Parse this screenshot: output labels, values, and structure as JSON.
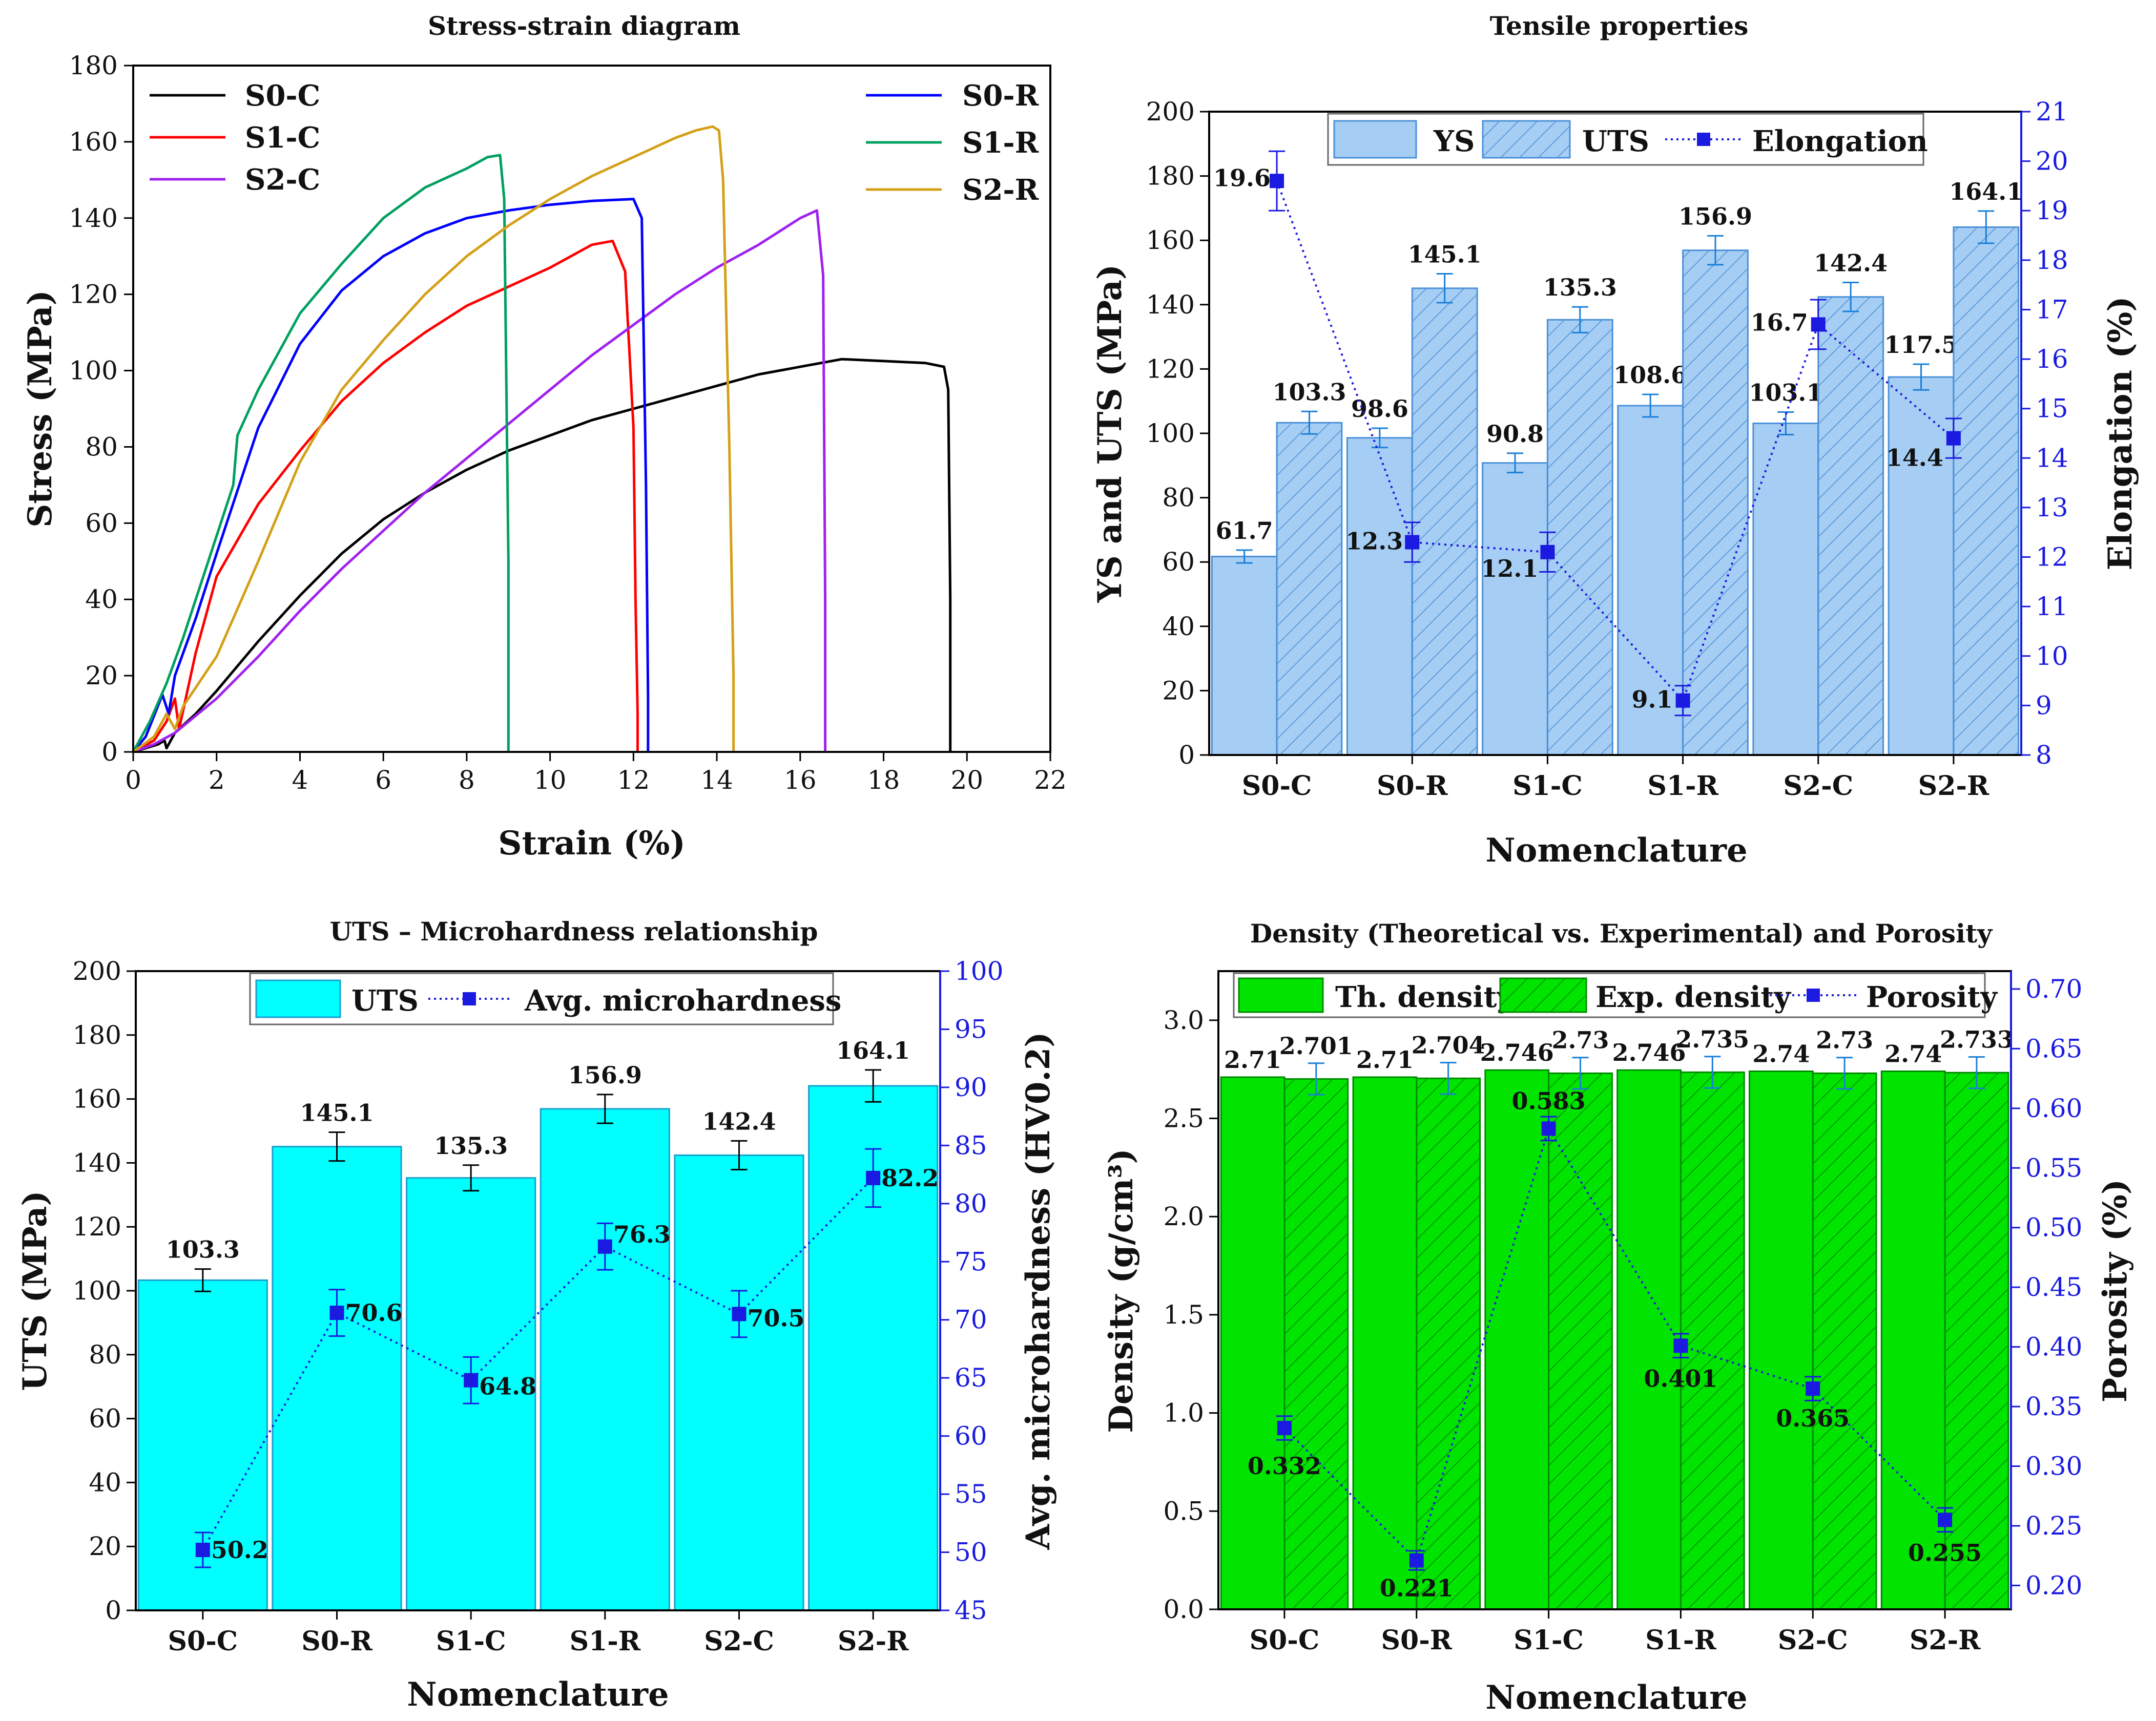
{
  "chart_data": [
    {
      "id": "c1",
      "type": "line",
      "title": "Stress-strain diagram",
      "xlabel": "Strain (%)",
      "ylabel": "Stress (MPa)",
      "xlim": [
        0,
        22
      ],
      "ylim": [
        0,
        180
      ],
      "xticks": [
        "0",
        "2",
        "4",
        "6",
        "8",
        "10",
        "12",
        "14",
        "16",
        "18",
        "20",
        "22"
      ],
      "yticks": [
        "0",
        "20",
        "40",
        "60",
        "80",
        "100",
        "120",
        "140",
        "160",
        "180"
      ],
      "legend_position": "top",
      "series": [
        {
          "name": "S0-C",
          "color": "#000000",
          "x": [
            0,
            0.3,
            0.6,
            0.75,
            0.8,
            1.0,
            1.5,
            2,
            3,
            4,
            5,
            6,
            7,
            8,
            9,
            10,
            11,
            12,
            13,
            14,
            15,
            16,
            17,
            18,
            19,
            19.45,
            19.55,
            19.6,
            19.6
          ],
          "y": [
            0,
            1,
            2,
            3,
            1,
            5,
            10,
            16,
            29,
            41,
            52,
            61,
            68,
            74,
            79,
            83,
            87,
            90,
            93,
            96,
            99,
            101,
            103,
            102.5,
            102,
            101,
            95,
            40,
            0
          ]
        },
        {
          "name": "S1-C",
          "color": "#ff0000",
          "x": [
            0,
            0.5,
            0.8,
            1.0,
            1.1,
            1.5,
            2,
            3,
            4,
            5,
            6,
            7,
            8,
            9,
            10,
            11,
            11.5,
            11.8,
            12.0,
            12.05,
            12.1,
            12.1
          ],
          "y": [
            0,
            3,
            8,
            14,
            6,
            26,
            46,
            65,
            79,
            92,
            102,
            110,
            117,
            122,
            127,
            133,
            134,
            126,
            85,
            40,
            10,
            0
          ]
        },
        {
          "name": "S2-C",
          "color": "#a020f0",
          "x": [
            0,
            0.5,
            1,
            2,
            3,
            4,
            5,
            6,
            7,
            8,
            9,
            10,
            11,
            12,
            13,
            14,
            15,
            16,
            16.4,
            16.55,
            16.6,
            16.6
          ],
          "y": [
            0,
            2,
            5,
            14,
            25,
            37,
            48,
            58,
            68,
            77,
            86,
            95,
            104,
            112,
            120,
            127,
            133,
            140,
            142,
            125,
            40,
            0
          ]
        },
        {
          "name": "S0-R",
          "color": "#0000ff",
          "x": [
            0,
            0.3,
            0.7,
            0.85,
            1.0,
            1.5,
            2,
            3,
            4,
            5,
            6,
            7,
            8,
            9,
            10,
            11,
            12,
            12.2,
            12.3,
            12.35,
            12.35
          ],
          "y": [
            0,
            4,
            15,
            10,
            20,
            35,
            52,
            85,
            107,
            121,
            130,
            136,
            140,
            142,
            143.5,
            144.5,
            145,
            140,
            70,
            15,
            0
          ]
        },
        {
          "name": "S1-R",
          "color": "#00a060",
          "x": [
            0,
            0.4,
            0.8,
            1.2,
            1.8,
            2.4,
            2.5,
            3,
            4,
            5,
            6,
            7,
            8,
            8.5,
            8.8,
            8.9,
            9.0,
            9.0
          ],
          "y": [
            0,
            8,
            18,
            30,
            50,
            70,
            83,
            95,
            115,
            128,
            140,
            148,
            153,
            156,
            156.5,
            145,
            50,
            0
          ]
        },
        {
          "name": "S2-R",
          "color": "#d4a017",
          "x": [
            0,
            0.5,
            0.8,
            1.0,
            1.2,
            2,
            3,
            4,
            5,
            6,
            7,
            8,
            9,
            10,
            11,
            12,
            13,
            13.5,
            13.9,
            14.05,
            14.15,
            14.3,
            14.4,
            14.4
          ],
          "y": [
            0,
            4,
            10,
            6,
            12,
            25,
            50,
            76,
            95,
            108,
            120,
            130,
            138,
            145,
            151,
            156,
            161,
            163,
            164,
            163,
            150,
            80,
            20,
            0
          ]
        }
      ]
    },
    {
      "id": "c2",
      "type": "bar",
      "title": "Tensile properties",
      "xlabel": "Nomenclature",
      "ylabel": "YS and UTS (MPa)",
      "y2label": "Elongation (%)",
      "categories": [
        "S0-C",
        "S0-R",
        "S1-C",
        "S1-R",
        "S2-C",
        "S2-R"
      ],
      "ylim": [
        0,
        200
      ],
      "y2lim": [
        8,
        21
      ],
      "yticks": [
        "0",
        "20",
        "40",
        "60",
        "80",
        "100",
        "120",
        "140",
        "160",
        "180",
        "200"
      ],
      "y2ticks": [
        "8",
        "9",
        "10",
        "11",
        "12",
        "13",
        "14",
        "15",
        "16",
        "17",
        "18",
        "19",
        "20",
        "21"
      ],
      "legend_position": "top",
      "legend": [
        "YS",
        "UTS",
        "Elongation"
      ],
      "series": [
        {
          "name": "YS",
          "values": [
            61.7,
            98.6,
            90.8,
            108.6,
            103.1,
            117.5
          ],
          "labels": [
            "61.7",
            "98.6",
            "90.8",
            "108.6",
            "103.1",
            "117.5"
          ],
          "errors": [
            2,
            3,
            3,
            3.5,
            3.5,
            4
          ]
        },
        {
          "name": "UTS",
          "values": [
            103.3,
            145.1,
            135.3,
            156.9,
            142.4,
            164.1
          ],
          "labels": [
            "103.3",
            "145.1",
            "135.3",
            "156.9",
            "142.4",
            "164.1"
          ],
          "errors": [
            3.5,
            4.5,
            4,
            4.5,
            4.5,
            5
          ]
        },
        {
          "name": "Elongation",
          "axis": "y2",
          "values": [
            19.6,
            12.3,
            12.1,
            9.1,
            16.7,
            14.4
          ],
          "labels": [
            "19.6",
            "12.3",
            "12.1",
            "9.1",
            "16.7",
            "14.4"
          ],
          "errors": [
            0.6,
            0.4,
            0.4,
            0.3,
            0.5,
            0.4
          ]
        }
      ]
    },
    {
      "id": "c3",
      "type": "bar",
      "title": "UTS – Microhardness relationship",
      "xlabel": "Nomenclature",
      "ylabel": "UTS (MPa)",
      "y2label": "Avg. microhardness (HV0.2)",
      "categories": [
        "S0-C",
        "S0-R",
        "S1-C",
        "S1-R",
        "S2-C",
        "S2-R"
      ],
      "ylim": [
        0,
        200
      ],
      "y2lim": [
        45,
        100
      ],
      "yticks": [
        "0",
        "20",
        "40",
        "60",
        "80",
        "100",
        "120",
        "140",
        "160",
        "180",
        "200"
      ],
      "y2ticks": [
        "45",
        "50",
        "55",
        "60",
        "65",
        "70",
        "75",
        "80",
        "85",
        "90",
        "95",
        "100"
      ],
      "legend_position": "top",
      "legend": [
        "UTS",
        "Avg. microhardness"
      ],
      "series": [
        {
          "name": "UTS",
          "values": [
            103.3,
            145.1,
            135.3,
            156.9,
            142.4,
            164.1
          ],
          "labels": [
            "103.3",
            "145.1",
            "135.3",
            "156.9",
            "142.4",
            "164.1"
          ],
          "errors": [
            3.5,
            4.5,
            4,
            4.5,
            4.5,
            5
          ]
        },
        {
          "name": "Avg. microhardness",
          "axis": "y2",
          "values": [
            50.2,
            70.6,
            64.8,
            76.3,
            70.5,
            82.2
          ],
          "labels": [
            "50.2",
            "70.6",
            "64.8",
            "76.3",
            "70.5",
            "82.2"
          ],
          "errors": [
            1.5,
            2,
            2,
            2,
            2,
            2.5
          ]
        }
      ]
    },
    {
      "id": "c4",
      "type": "bar",
      "title": "Density (Theoretical vs. Experimental) and Porosity",
      "xlabel": "Nomenclature",
      "ylabel": "Density (g/cm³)",
      "y2label": "Porosity (%)",
      "categories": [
        "S0-C",
        "S0-R",
        "S1-C",
        "S1-R",
        "S2-C",
        "S2-R"
      ],
      "ylim": [
        0,
        3.25
      ],
      "y2lim": [
        0.18,
        0.715
      ],
      "yticks": [
        "0.0",
        "0.5",
        "1.0",
        "1.5",
        "2.0",
        "2.5",
        "3.0"
      ],
      "y2ticks": [
        "0.20",
        "0.25",
        "0.30",
        "0.35",
        "0.40",
        "0.45",
        "0.50",
        "0.55",
        "0.60",
        "0.65",
        "0.70"
      ],
      "legend_position": "top",
      "legend": [
        "Th. density",
        "Exp. density",
        "Porosity"
      ],
      "series": [
        {
          "name": "Th. density",
          "values": [
            2.71,
            2.71,
            2.746,
            2.746,
            2.74,
            2.74
          ],
          "labels": [
            "2.71",
            "2.71",
            "2.746",
            "2.746",
            "2.74",
            "2.74"
          ],
          "errors": [
            0,
            0,
            0,
            0,
            0,
            0
          ]
        },
        {
          "name": "Exp. density",
          "values": [
            2.701,
            2.704,
            2.73,
            2.735,
            2.73,
            2.733
          ],
          "labels": [
            "2.701",
            "2.704",
            "2.73",
            "2.735",
            "2.73",
            "2.733"
          ],
          "errors": [
            0.08,
            0.08,
            0.08,
            0.08,
            0.08,
            0.08
          ]
        },
        {
          "name": "Porosity",
          "axis": "y2",
          "values": [
            0.332,
            0.221,
            0.583,
            0.401,
            0.365,
            0.255
          ],
          "labels": [
            "0.332",
            "0.221",
            "0.583",
            "0.401",
            "0.365",
            "0.255"
          ],
          "errors": [
            0.01,
            0.008,
            0.01,
            0.01,
            0.01,
            0.01
          ]
        }
      ]
    }
  ]
}
